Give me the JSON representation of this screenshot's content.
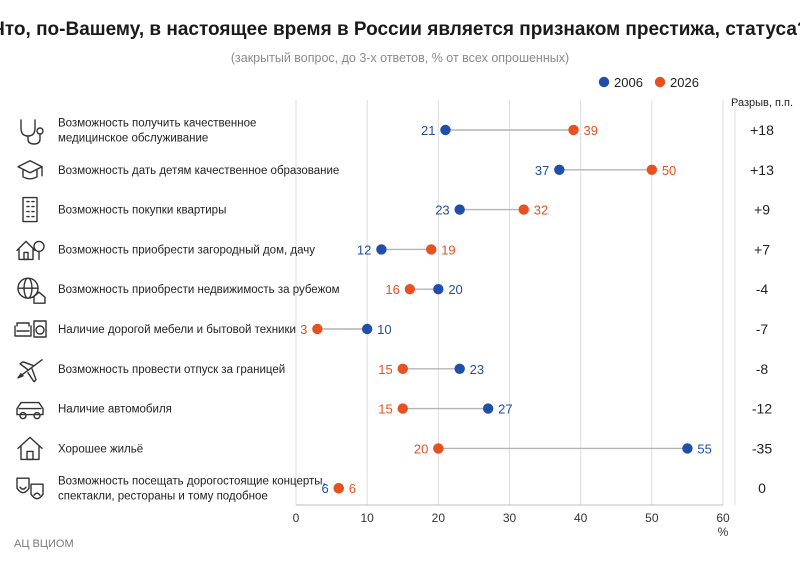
{
  "colors": {
    "s2006": "#1f4fa8",
    "s2026": "#e8501f",
    "connector": "#b4b4b4",
    "grid": "#dcdcdc"
  },
  "chart_data": {
    "type": "dumbbell",
    "title": "Что, по-Вашему, в настоящее время в России является признаком престижа, статуса?",
    "subtitle": "(закрытый вопрос, до 3-х ответов, % от всех опрошенных)",
    "xlabel": "%",
    "xlim": [
      0,
      60
    ],
    "xticks": [
      0,
      10,
      20,
      30,
      40,
      50,
      60
    ],
    "grid": "vertical",
    "legend_position": "top-right",
    "gap_header": "Разрыв, п.п.",
    "source": "АЦ ВЦИОМ",
    "series_names": [
      "2006",
      "2026"
    ],
    "items": [
      {
        "label_lines": [
          "Возможность получить качественное",
          "медицинское обслуживание"
        ],
        "icon": "stethoscope-icon",
        "v2006": 21,
        "v2026": 39,
        "gap": "+18"
      },
      {
        "label_lines": [
          "Возможность дать детям качественное образование"
        ],
        "icon": "graduation-cap-icon",
        "v2006": 37,
        "v2026": 50,
        "gap": "+13"
      },
      {
        "label_lines": [
          "Возможность покупки квартиры"
        ],
        "icon": "apartment-building-icon",
        "v2006": 23,
        "v2026": 32,
        "gap": "+9"
      },
      {
        "label_lines": [
          "Возможность приобрести загородный дом, дачу"
        ],
        "icon": "country-house-icon",
        "v2006": 12,
        "v2026": 19,
        "gap": "+7"
      },
      {
        "label_lines": [
          "Возможность приобрести недвижимость за рубежом"
        ],
        "icon": "globe-house-icon",
        "v2006": 20,
        "v2026": 16,
        "gap": "-4"
      },
      {
        "label_lines": [
          "Наличие дорогой мебели и бытовой техники"
        ],
        "icon": "sofa-washer-icon",
        "v2006": 10,
        "v2026": 3,
        "gap": "-7"
      },
      {
        "label_lines": [
          "Возможность провести отпуск за границей"
        ],
        "icon": "airplane-icon",
        "v2006": 23,
        "v2026": 15,
        "gap": "-8"
      },
      {
        "label_lines": [
          "Наличие автомобиля"
        ],
        "icon": "car-icon",
        "v2006": 27,
        "v2026": 15,
        "gap": "-12"
      },
      {
        "label_lines": [
          "Хорошее жильё"
        ],
        "icon": "house-icon",
        "v2006": 55,
        "v2026": 20,
        "gap": "-35"
      },
      {
        "label_lines": [
          "Возможность посещать дорогостоящие концерты,",
          "спектакли, рестораны и тому подобное"
        ],
        "icon": "theater-masks-icon",
        "v2006": 6,
        "v2026": 6,
        "gap": "0"
      }
    ]
  }
}
